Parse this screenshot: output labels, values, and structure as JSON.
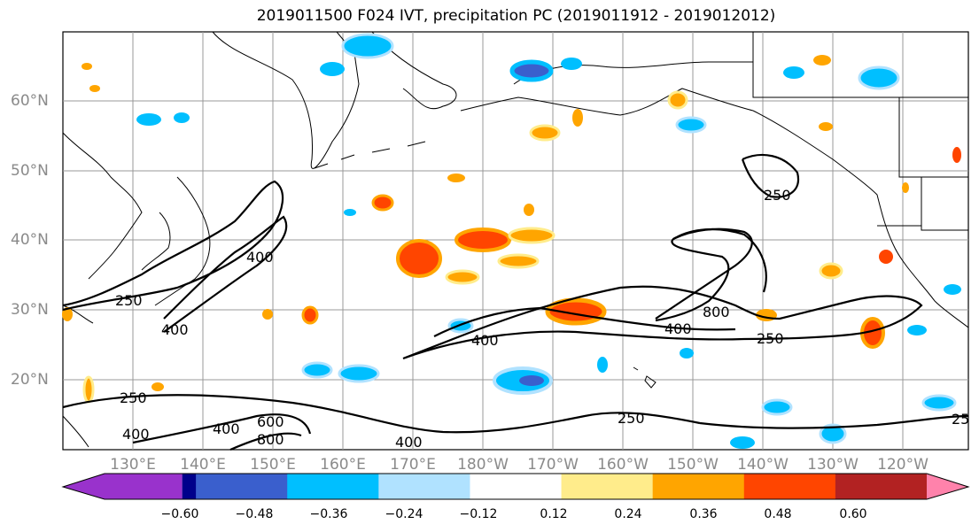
{
  "title": "2019011500 F024 IVT, precipitation PC (2019011912 - 2019012012)",
  "map": {
    "lat_labels": [
      "60°N",
      "50°N",
      "40°N",
      "30°N",
      "20°N"
    ],
    "lon_labels": [
      "130°E",
      "140°E",
      "150°E",
      "160°E",
      "170°E",
      "180°W",
      "170°W",
      "160°W",
      "150°W",
      "140°W",
      "130°W",
      "120°W"
    ],
    "ivt_contour_labels": [
      "250",
      "400",
      "250",
      "400",
      "400",
      "800",
      "400",
      "250",
      "250",
      "400",
      "600",
      "800",
      "400",
      "250",
      "25",
      "400"
    ],
    "land_color": "#ffffff",
    "coast_color": "#000000"
  },
  "colorbar": {
    "ticks": [
      "−0.60",
      "−0.48",
      "−0.36",
      "−0.24",
      "−0.12",
      "0.12",
      "0.24",
      "0.36",
      "0.48",
      "0.60"
    ],
    "colors": [
      "#9932cc",
      "#00008b",
      "#3a5fcd",
      "#00bfff",
      "#b0e2ff",
      "#ffffff",
      "#ffec8b",
      "#ffa500",
      "#ff4500",
      "#b22222",
      "#ff82ab"
    ]
  }
}
